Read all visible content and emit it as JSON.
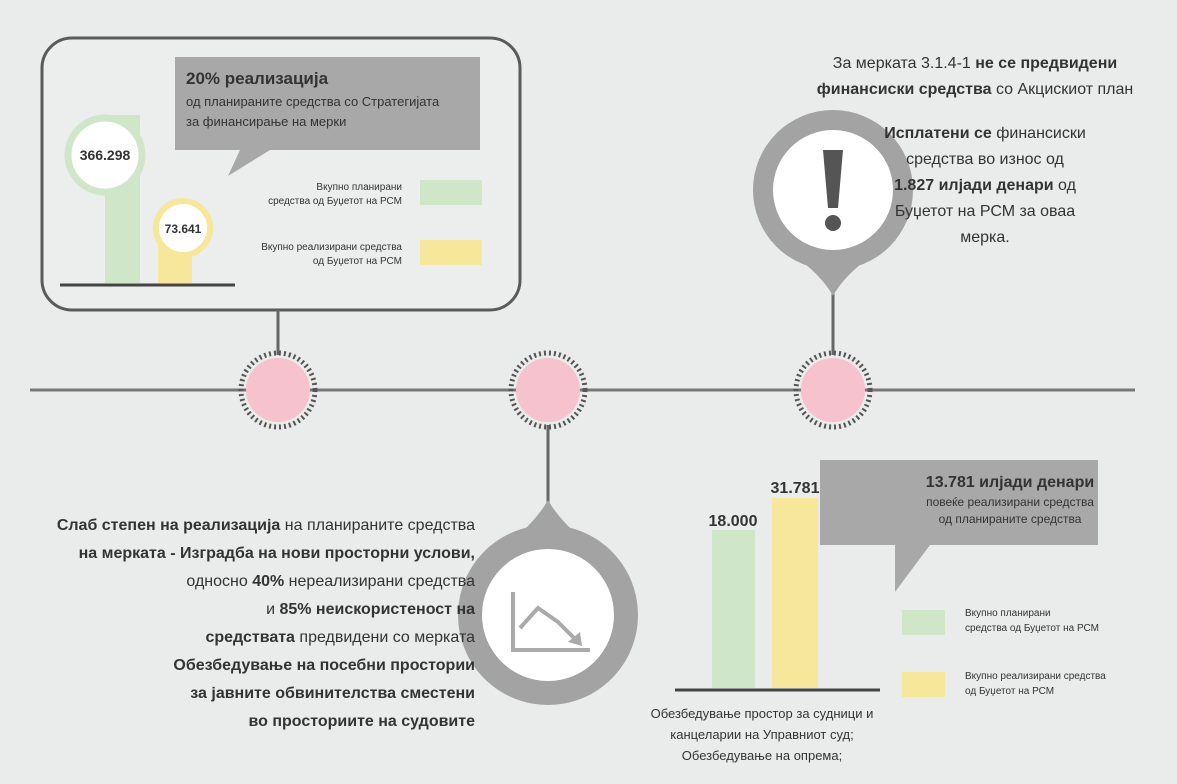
{
  "top_panel": {
    "headline": "20% реализација",
    "subtitle_lines": [
      "од планираните средства со Стратегијата",
      "за финансирање на мерки"
    ],
    "planned_label": "366.298",
    "realized_label": "73.641",
    "legend_planned": [
      "Вкупно планирани",
      "средства од Буџетот на РСМ"
    ],
    "legend_realized": [
      "Вкупно реализирани средства",
      "од Буџетот на РСМ"
    ]
  },
  "middle_text": {
    "lines": [
      [
        {
          "text": "Слаб степен на реализација",
          "bold": true
        },
        {
          "text": " на планираните средства"
        }
      ],
      [
        {
          "text": "на мерката - Изградба на нови просторни услови,",
          "bold": true
        }
      ],
      [
        {
          "text": "односно "
        },
        {
          "text": "40%",
          "bold": true
        },
        {
          "text": " нереализирани средства"
        }
      ],
      [
        {
          "text": "и "
        },
        {
          "text": "85% неискористеност на",
          "bold": true
        }
      ],
      [
        {
          "text": "средствата",
          "bold": true
        },
        {
          "text": " предвидени со мерката"
        }
      ],
      [
        {
          "text": "Обезбедување на посебни простории",
          "bold": true
        }
      ],
      [
        {
          "text": "за јавните обвинителства сместени",
          "bold": true
        }
      ],
      [
        {
          "text": "во просториите на судовите",
          "bold": true
        }
      ]
    ]
  },
  "right_text": {
    "lines": [
      [
        {
          "text": "За мерката 3.1.4-1 "
        },
        {
          "text": "не се предвидени",
          "bold": true
        }
      ],
      [
        {
          "text": "финансиски средства",
          "bold": true
        },
        {
          "text": " со Акцискиот план"
        }
      ],
      [
        {
          "text": "Исплатени се",
          "bold": true
        },
        {
          "text": " финансиски"
        }
      ],
      [
        {
          "text": "средства во износ од"
        }
      ],
      [
        {
          "text": "1.827 илјади денари",
          "bold": true
        },
        {
          "text": " од"
        }
      ],
      [
        {
          "text": "Буџетот на РСМ за оваа"
        }
      ],
      [
        {
          "text": "мерка."
        }
      ]
    ]
  },
  "bottom_panel": {
    "planned_label": "18.000",
    "realized_label": "31.781",
    "caption_lines": [
      "Обезбедување простор за судници и",
      "канцеларии на Управниот суд;",
      "Обезбедување на опрема;"
    ],
    "headline": "13.781 илјади денари",
    "subtitle_lines": [
      "повеќе реализирани средства",
      "од планираните средства"
    ],
    "legend_planned": [
      "Вкупно планирани",
      "средства од Буџетот на РСМ"
    ],
    "legend_realized": [
      "Вкупно реализирани средства",
      "од Буџетот на РСМ"
    ]
  }
}
